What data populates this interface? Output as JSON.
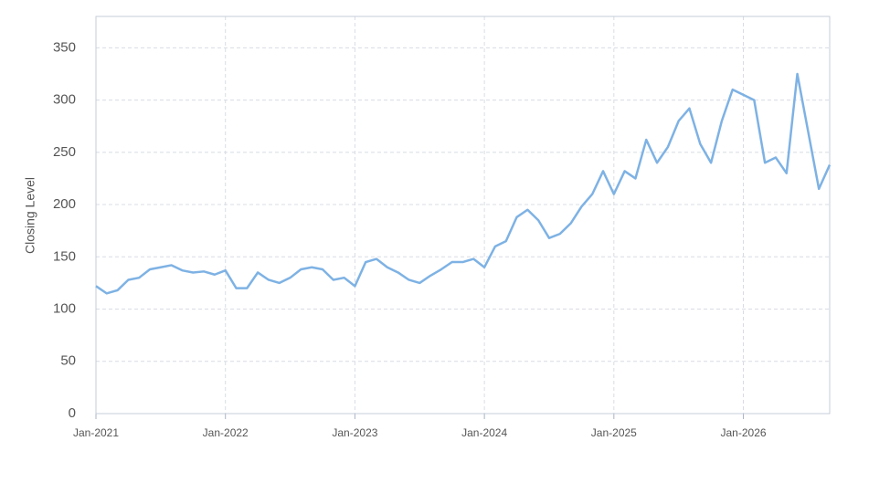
{
  "chart_data": {
    "type": "line",
    "y_label": "Closing Level",
    "x": [
      "2021-01",
      "2021-02",
      "2021-03",
      "2021-04",
      "2021-05",
      "2021-06",
      "2021-07",
      "2021-08",
      "2021-09",
      "2021-10",
      "2021-11",
      "2021-12",
      "2022-01",
      "2022-02",
      "2022-03",
      "2022-04",
      "2022-05",
      "2022-06",
      "2022-07",
      "2022-08",
      "2022-09",
      "2022-10",
      "2022-11",
      "2022-12",
      "2023-01",
      "2023-02",
      "2023-03",
      "2023-04",
      "2023-05",
      "2023-06",
      "2023-07",
      "2023-08",
      "2023-09",
      "2023-10",
      "2023-11",
      "2023-12",
      "2024-01",
      "2024-02",
      "2024-03",
      "2024-04",
      "2024-05",
      "2024-06",
      "2024-07",
      "2024-08",
      "2024-09",
      "2024-10",
      "2024-11",
      "2024-12",
      "2025-01",
      "2025-02",
      "2025-03",
      "2025-04",
      "2025-05",
      "2025-06",
      "2025-07",
      "2025-08",
      "2025-09",
      "2025-10",
      "2025-11",
      "2025-12",
      "2026-01",
      "2026-02",
      "2026-03",
      "2026-04",
      "2026-05",
      "2026-06",
      "2026-07",
      "2026-08",
      "2026-09"
    ],
    "series": [
      {
        "name": "Closing Level",
        "color": "#7eb2e4",
        "values": [
          122,
          115,
          118,
          128,
          130,
          138,
          140,
          142,
          137,
          135,
          136,
          133,
          137,
          120,
          120,
          135,
          128,
          125,
          130,
          138,
          140,
          138,
          128,
          130,
          122,
          145,
          148,
          140,
          135,
          128,
          125,
          132,
          138,
          145,
          145,
          148,
          140,
          160,
          165,
          188,
          195,
          185,
          168,
          172,
          182,
          198,
          210,
          232,
          210,
          232,
          225,
          262,
          240,
          255,
          280,
          292,
          258,
          240,
          280,
          310,
          305,
          300,
          240,
          245,
          230,
          325,
          270,
          215,
          238
        ]
      }
    ],
    "xlim": [
      "2021-01",
      "2026-09"
    ],
    "xticks": [
      {
        "value": "2021-01",
        "label": "Jan-2021"
      },
      {
        "value": "2022-01",
        "label": "Jan-2022"
      },
      {
        "value": "2023-01",
        "label": "Jan-2023"
      },
      {
        "value": "2024-01",
        "label": "Jan-2024"
      },
      {
        "value": "2025-01",
        "label": "Jan-2025"
      },
      {
        "value": "2026-01",
        "label": "Jan-2026"
      }
    ],
    "ylim": [
      0,
      380
    ],
    "yticks": [
      0,
      50,
      100,
      150,
      200,
      250,
      300,
      350
    ],
    "grid": true
  }
}
